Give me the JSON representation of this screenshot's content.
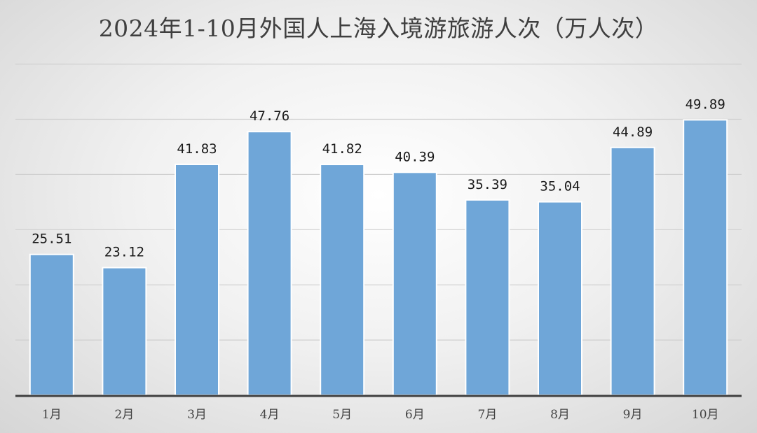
{
  "chart_data": {
    "type": "bar",
    "title": "2024年1-10月外国人上海入境游旅游人次（万人次）",
    "categories": [
      "1月",
      "2月",
      "3月",
      "4月",
      "5月",
      "6月",
      "7月",
      "8月",
      "9月",
      "10月"
    ],
    "values": [
      25.51,
      23.12,
      41.83,
      47.76,
      41.82,
      40.39,
      35.39,
      35.04,
      44.89,
      49.89
    ],
    "data_labels": [
      "25.51",
      "23.12",
      "41.83",
      "47.76",
      "41.82",
      "40.39",
      "35.39",
      "35.04",
      "44.89",
      "49.89"
    ],
    "xlabel": "",
    "ylabel": "",
    "ylim": [
      0,
      60
    ],
    "grid": true,
    "legend": "none",
    "bar_color": "#6fa6d8",
    "grid_color": "#cfcfcf"
  }
}
